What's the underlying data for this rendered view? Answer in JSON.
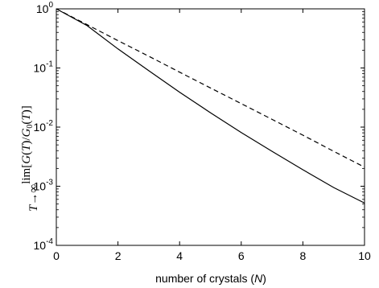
{
  "chart_data": {
    "type": "line",
    "title": "",
    "xlabel": {
      "prefix": "number of crystals (",
      "symbol": "N",
      "suffix": ")"
    },
    "ylabel": {
      "lim": "lim",
      "limsub": "T→∞",
      "bracket_open": "[",
      "g": "G",
      "open1": "(",
      "t1": "T",
      "close1": ")/",
      "g0": "G",
      "zero": "0",
      "open2": "(",
      "t2": "T",
      "close2": ")]"
    },
    "x_scale": "linear",
    "y_scale": "log",
    "xlim": [
      0,
      10
    ],
    "ylim": [
      0.0001,
      1
    ],
    "x_ticks": [
      0,
      2,
      4,
      6,
      8,
      10
    ],
    "x_tick_labels": [
      "0",
      "2",
      "4",
      "6",
      "8",
      "10"
    ],
    "y_ticks": [
      {
        "value": 1,
        "base": "10",
        "exp": "0"
      },
      {
        "value": 0.1,
        "base": "10",
        "exp": "-1"
      },
      {
        "value": 0.01,
        "base": "10",
        "exp": "-2"
      },
      {
        "value": 0.001,
        "base": "10",
        "exp": "-3"
      },
      {
        "value": 0.0001,
        "base": "10",
        "exp": "-4"
      }
    ],
    "grid": false,
    "legend": "none",
    "series": [
      {
        "style": "solid",
        "color": "#000000",
        "x": [
          0,
          1,
          2,
          3,
          4,
          5,
          6,
          7,
          8,
          9,
          10
        ],
        "y": [
          1.0,
          0.52,
          0.21,
          0.09,
          0.039,
          0.0175,
          0.0081,
          0.0039,
          0.0019,
          0.00095,
          0.00052
        ]
      },
      {
        "style": "dashed",
        "color": "#000000",
        "x": [
          0,
          1,
          2,
          3,
          4,
          5,
          6,
          7,
          8,
          9,
          10
        ],
        "y": [
          1.0,
          0.54,
          0.29,
          0.158,
          0.085,
          0.046,
          0.025,
          0.0135,
          0.0073,
          0.0039,
          0.0021
        ]
      }
    ]
  }
}
